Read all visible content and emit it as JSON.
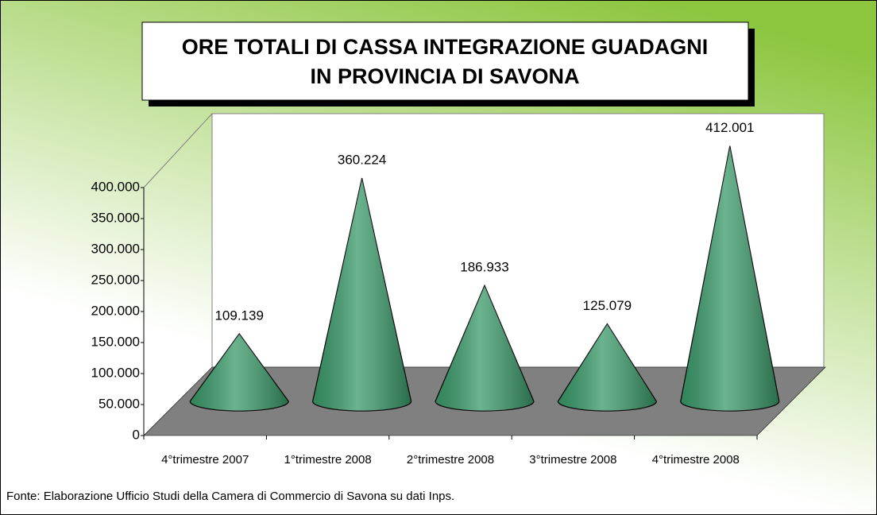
{
  "chart_data": {
    "type": "cone",
    "title": [
      "ORE TOTALI DI CASSA INTEGRAZIONE GUADAGNI",
      "IN PROVINCIA DI SAVONA"
    ],
    "categories": [
      "4°trimestre 2007",
      "1°trimestre 2008",
      "2°trimestre 2008",
      "3°trimestre 2008",
      "4°trimestre 2008"
    ],
    "values": [
      109139,
      360224,
      186933,
      125079,
      412001
    ],
    "value_labels": [
      "109.139",
      "360.224",
      "186.933",
      "125.079",
      "412.001"
    ],
    "color": "#3a9a6a",
    "ylim": [
      0,
      400000
    ],
    "yticks": [
      0,
      {
        "value": 50000,
        "label": "50.000"
      },
      {
        "value": 100000,
        "label": "100.000"
      },
      {
        "value": 150000,
        "label": "150.000"
      },
      {
        "value": 200000,
        "label": "200.000"
      },
      {
        "value": 250000,
        "label": "250.000"
      },
      {
        "value": 300000,
        "label": "300.000"
      },
      {
        "value": 350000,
        "label": "350.000"
      },
      {
        "value": 400000,
        "label": "400.000"
      }
    ],
    "source": "Fonte: Elaborazione Ufficio Studi della Camera di Commercio di Savona su dati Inps."
  }
}
